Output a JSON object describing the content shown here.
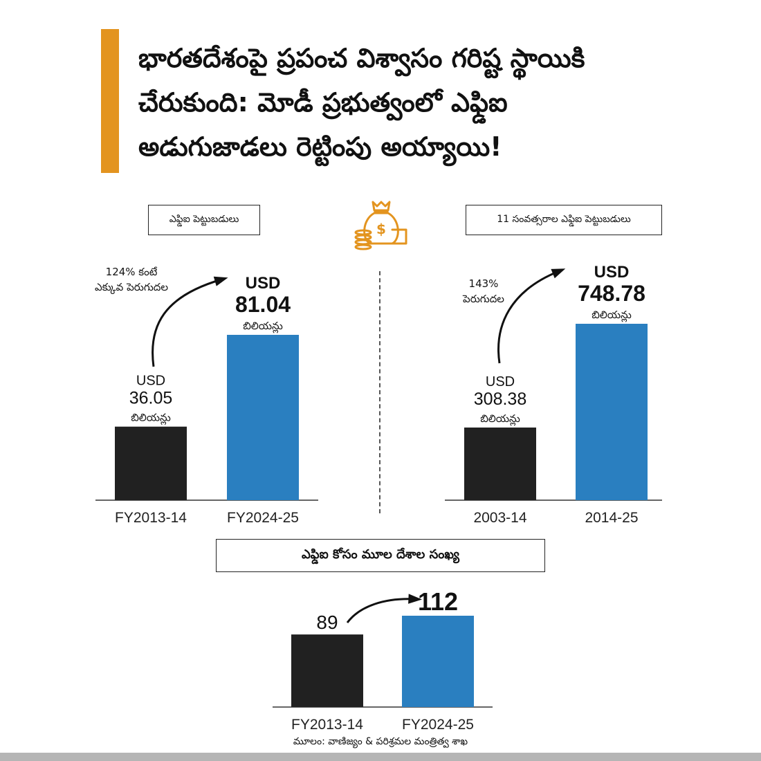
{
  "headline": {
    "line1": "భారతదేశంపై ప్రపంచ విశ్వాసం గరిష్ట స్థాయికి",
    "line2": "చేరుకుంది: మోడీ ప్రభుత్వంలో ఎఫ్డిఐ",
    "line3": "అడుగుజాడలు రెట్టింపు అయ్యాయి!"
  },
  "colors": {
    "accent": "#e3941f",
    "bar_dark": "#212121",
    "bar_blue": "#2a7fc0"
  },
  "icon": "money-bag-coins-icon",
  "source": "మూలం: వాణిజ్యం & పరిశ్రమల మంత్రిత్వ శాఖ",
  "chart_data": [
    {
      "type": "bar",
      "title": "ఎఫ్డిఐ పెట్టుబడులు",
      "categories": [
        "FY2013-14",
        "FY2024-25"
      ],
      "values": [
        36.05,
        81.04
      ],
      "value_labels": [
        {
          "prefix": "USD",
          "number": "36.05",
          "suffix": "బిలియన్లు"
        },
        {
          "prefix": "USD",
          "number": "81.04",
          "suffix": "బిలియన్లు"
        }
      ],
      "annotation": [
        "124% కంటే",
        "ఎక్కువ పెరుగుదల"
      ]
    },
    {
      "type": "bar",
      "title": "11 సంవత్సరాల ఎఫ్డిఐ పెట్టుబడులు",
      "categories": [
        "2003-14",
        "2014-25"
      ],
      "values": [
        308.38,
        748.78
      ],
      "value_labels": [
        {
          "prefix": "USD",
          "number": "308.38",
          "suffix": "బిలియన్లు"
        },
        {
          "prefix": "USD",
          "number": "748.78",
          "suffix": "బిలియన్లు"
        }
      ],
      "annotation": [
        "143%",
        "పెరుగుదల"
      ]
    },
    {
      "type": "bar",
      "title": "ఎఫ్డిఐ కోసం మూల దేశాల సంఖ్య",
      "categories": [
        "FY2013-14",
        "FY2024-25"
      ],
      "values": [
        89,
        112
      ],
      "value_labels": [
        {
          "number": "89"
        },
        {
          "number": "112"
        }
      ]
    }
  ]
}
